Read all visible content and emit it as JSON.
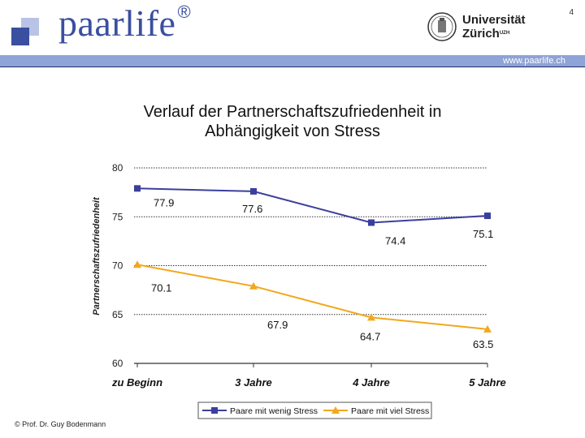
{
  "header": {
    "brand_name": "paarlife",
    "registered_mark": "®",
    "page_number": "4",
    "university_line1": "Universität",
    "university_line2": "Zürich",
    "university_suffix": "UZH",
    "url": "www.paarlife.ch",
    "colors": {
      "brand": "#3a4fa0",
      "bar": "#8ea3d6"
    }
  },
  "footer": {
    "credit": "© Prof. Dr. Guy Bodenmann"
  },
  "chart_data": {
    "type": "line",
    "title": "Verlauf der Partnerschaftszufriedenheit in Abhängigkeit von Stress",
    "title_line1": "Verlauf der Partnerschaftszufriedenheit in",
    "title_line2": "Abhängigkeit von Stress",
    "ylabel": "Partnerschaftszufriedenheit",
    "xlabel": "",
    "ylim": [
      60,
      80
    ],
    "yticks": [
      60,
      65,
      70,
      75,
      80
    ],
    "categories": [
      "zu Beginn",
      "3 Jahre",
      "4 Jahre",
      "5 Jahre"
    ],
    "series": [
      {
        "name": "Paare mit wenig Stress",
        "values": [
          77.9,
          77.6,
          74.4,
          75.1
        ],
        "labels": [
          "77.9",
          "77.6",
          "74.4",
          "75.1"
        ],
        "color": "#3b3f9c",
        "marker": "square"
      },
      {
        "name": "Paare mit viel Stress",
        "values": [
          70.1,
          67.9,
          64.7,
          63.5
        ],
        "labels": [
          "70.1",
          "67.9",
          "64.7",
          "63.5"
        ],
        "color": "#f2a81d",
        "marker": "triangle"
      }
    ],
    "grid": true,
    "legend": "bottom"
  }
}
